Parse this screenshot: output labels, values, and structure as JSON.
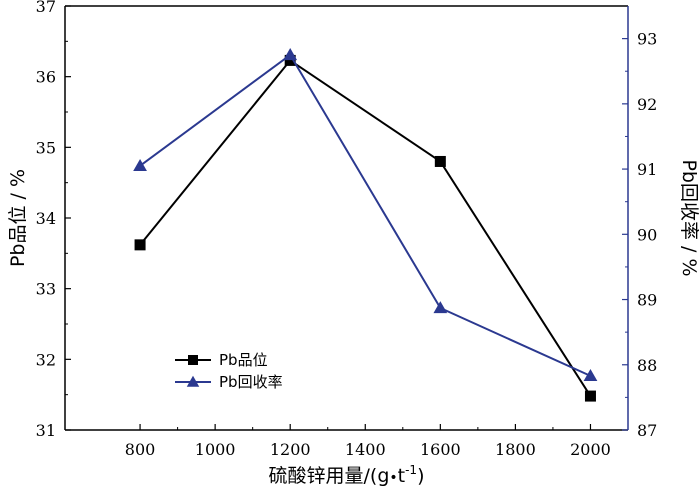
{
  "chart_data": {
    "type": "line",
    "title": "",
    "x": [
      800,
      1200,
      1600,
      2000
    ],
    "xlabel_main": "硫酸锌用量/(g",
    "xlabel_sep": "•",
    "xlabel_t": "t",
    "xlabel_sup": "-1",
    "xlabel_close": ")",
    "xlim": [
      600,
      2100
    ],
    "xticks": [
      800,
      1000,
      1200,
      1400,
      1600,
      1800,
      2000
    ],
    "ylabel_left": "Pb品位 / %",
    "ylim_left": [
      31,
      37
    ],
    "yticks_left": [
      31,
      32,
      33,
      34,
      35,
      36,
      37
    ],
    "ylabel_right": "Pb回收率 / %",
    "ylim_right": [
      87,
      93.5
    ],
    "yticks_right": [
      87,
      88,
      89,
      90,
      91,
      92,
      93
    ],
    "series": [
      {
        "name": "Pb品位",
        "axis": "left",
        "marker": "square",
        "color": "#000000",
        "values": [
          33.62,
          36.23,
          34.8,
          31.48
        ]
      },
      {
        "name": "Pb回收率",
        "axis": "right",
        "marker": "triangle",
        "color": "#2b3990",
        "values": [
          91.05,
          92.75,
          88.87,
          87.83
        ]
      }
    ],
    "right_axis_color": "#2b3990",
    "grid": false,
    "legend_position": "lower-left"
  }
}
